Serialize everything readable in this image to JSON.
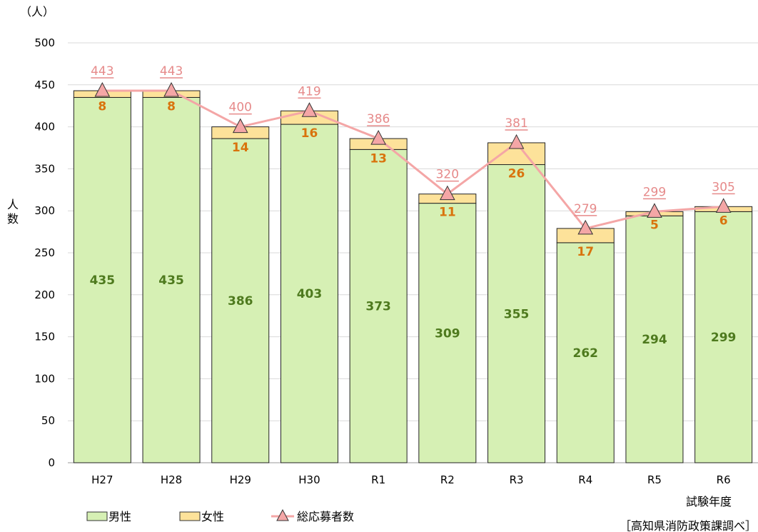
{
  "chart_data": {
    "type": "bar",
    "stacked": true,
    "categories": [
      "H27",
      "H28",
      "H29",
      "H30",
      "R1",
      "R2",
      "R3",
      "R4",
      "R5",
      "R6"
    ],
    "series": [
      {
        "name": "男性",
        "type": "bar",
        "color": "#d6f0b4",
        "values": [
          435,
          435,
          386,
          403,
          373,
          309,
          355,
          262,
          294,
          299
        ]
      },
      {
        "name": "女性",
        "type": "bar",
        "color": "#fde29a",
        "values": [
          8,
          8,
          14,
          16,
          13,
          11,
          26,
          17,
          5,
          6
        ]
      },
      {
        "name": "総応募者数",
        "type": "line",
        "color": "#f4a6a6",
        "values": [
          443,
          443,
          400,
          419,
          386,
          320,
          381,
          279,
          299,
          305
        ]
      }
    ],
    "yunit": "（人）",
    "ylabel": "人数",
    "xlabel": "試験年度",
    "ylim": [
      0,
      500
    ],
    "yticks": [
      0,
      50,
      100,
      150,
      200,
      250,
      300,
      350,
      400,
      450,
      500
    ],
    "grid": true,
    "legend_position": "bottom-left",
    "source": "［高知県消防政策課調べ］"
  }
}
